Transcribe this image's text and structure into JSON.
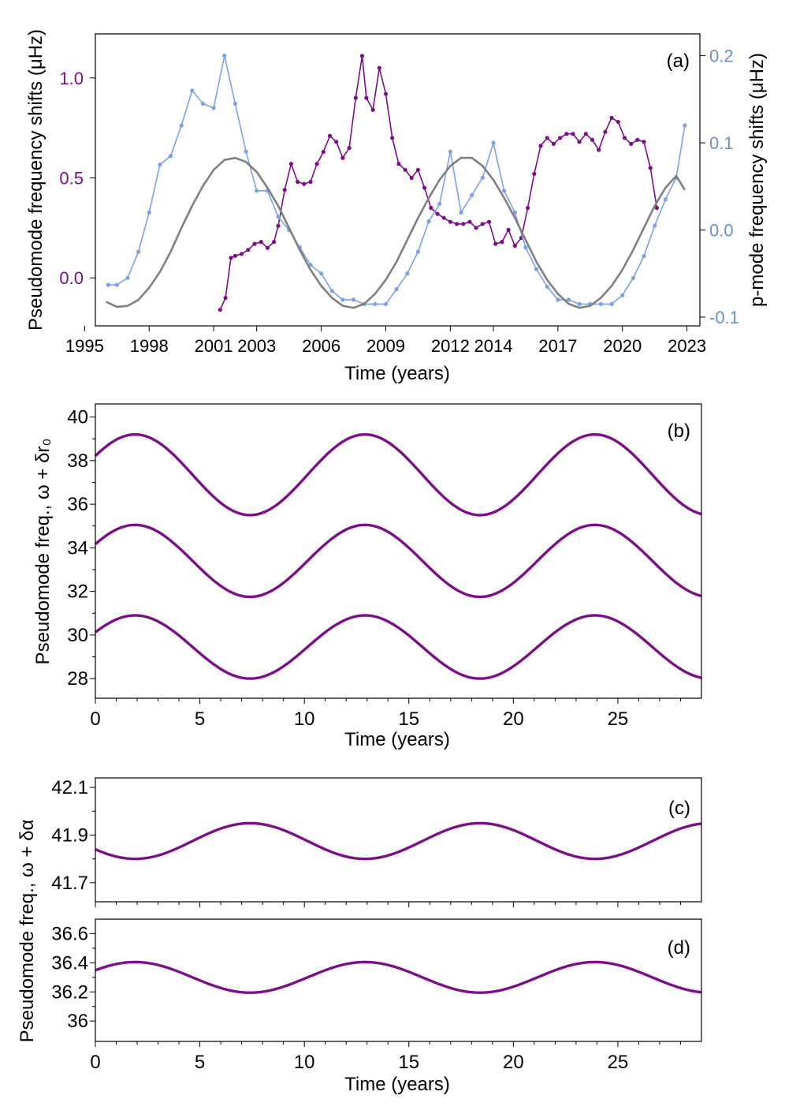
{
  "colors": {
    "pseudomode": "#7b0f87",
    "pmode_line": "#7ea0e6",
    "pmode_axis": "#6f8fc4",
    "sine": "#808080",
    "pseudomode_label": "#7b0f87"
  },
  "chart_data": [
    {
      "id": "a",
      "type": "line",
      "panel_label": "(a)",
      "xlabel": "Time (years)",
      "ylabel_left": "Pseudomode frequency shifts (μHz)",
      "ylabel_right": "p-mode frequency shifts (μHz)",
      "xlim": [
        1995.5,
        2023.6
      ],
      "ylim_left": [
        -0.24,
        1.22
      ],
      "ylim_right": [
        -0.11,
        0.225
      ],
      "xticks": [
        1995,
        1998,
        2001,
        2003,
        2006,
        2009,
        2012,
        2014,
        2017,
        2020,
        2023
      ],
      "xtick_labels": [
        "1995",
        "1998",
        "2001",
        "2003",
        "2006",
        "2009",
        "2012",
        "2014",
        "2017",
        "2020",
        "2023"
      ],
      "yticks_left": [
        0.0,
        0.5,
        1.0
      ],
      "ytick_labels_left": [
        "0.0",
        "0.5",
        "1.0"
      ],
      "yticks_right": [
        -0.1,
        0.0,
        0.1,
        0.2
      ],
      "ytick_labels_right": [
        "-0.1",
        "0.0",
        "0.1",
        "0.2"
      ],
      "series": [
        {
          "name": "pseudomode shifts",
          "axis": "left",
          "markers": true,
          "x": [
            2001.3,
            2001.55,
            2001.8,
            2002.0,
            2002.3,
            2002.6,
            2002.9,
            2003.2,
            2003.5,
            2003.8,
            2004.0,
            2004.3,
            2004.6,
            2004.9,
            2005.2,
            2005.5,
            2005.8,
            2006.1,
            2006.4,
            2006.7,
            2007.0,
            2007.3,
            2007.6,
            2007.9,
            2008.1,
            2008.4,
            2008.7,
            2009.0,
            2009.3,
            2009.6,
            2009.9,
            2010.2,
            2010.5,
            2010.8,
            2011.1,
            2011.4,
            2011.7,
            2012.0,
            2012.3,
            2012.6,
            2012.9,
            2013.2,
            2013.5,
            2013.8,
            2014.1,
            2014.4,
            2014.7,
            2015.0,
            2015.3,
            2015.6,
            2015.9,
            2016.2,
            2016.5,
            2016.8,
            2017.1,
            2017.4,
            2017.7,
            2018.0,
            2018.3,
            2018.6,
            2018.9,
            2019.2,
            2019.5,
            2019.8,
            2020.1,
            2020.4,
            2020.7,
            2021.0,
            2021.3,
            2021.6
          ],
          "y": [
            -0.16,
            -0.1,
            0.1,
            0.11,
            0.12,
            0.14,
            0.17,
            0.18,
            0.15,
            0.18,
            0.26,
            0.44,
            0.57,
            0.48,
            0.47,
            0.48,
            0.57,
            0.63,
            0.71,
            0.68,
            0.6,
            0.65,
            0.9,
            1.11,
            0.9,
            0.84,
            1.05,
            0.92,
            0.7,
            0.57,
            0.54,
            0.5,
            0.54,
            0.45,
            0.35,
            0.32,
            0.3,
            0.28,
            0.27,
            0.27,
            0.28,
            0.25,
            0.27,
            0.28,
            0.17,
            0.18,
            0.24,
            0.16,
            0.2,
            0.35,
            0.52,
            0.66,
            0.7,
            0.67,
            0.7,
            0.72,
            0.72,
            0.68,
            0.72,
            0.69,
            0.64,
            0.73,
            0.8,
            0.78,
            0.7,
            0.67,
            0.69,
            0.68,
            0.55,
            0.35
          ]
        },
        {
          "name": "p-mode shifts",
          "axis": "right",
          "markers": true,
          "x": [
            1996.1,
            1996.5,
            1997.0,
            1997.5,
            1998.0,
            1998.5,
            1999.0,
            1999.5,
            2000.0,
            2000.5,
            2001.0,
            2001.5,
            2002.0,
            2002.5,
            2003.0,
            2003.5,
            2004.0,
            2004.5,
            2005.0,
            2005.5,
            2006.0,
            2006.5,
            2007.0,
            2007.5,
            2008.0,
            2008.5,
            2009.0,
            2009.5,
            2010.0,
            2010.5,
            2011.0,
            2011.5,
            2012.0,
            2012.5,
            2013.0,
            2013.5,
            2014.0,
            2014.5,
            2015.0,
            2015.5,
            2016.0,
            2016.5,
            2017.0,
            2017.5,
            2018.0,
            2018.5,
            2019.0,
            2019.5,
            2020.0,
            2020.5,
            2021.0,
            2021.5,
            2022.0,
            2022.5,
            2022.9
          ],
          "y": [
            -0.063,
            -0.063,
            -0.055,
            -0.025,
            0.02,
            0.075,
            0.085,
            0.12,
            0.16,
            0.145,
            0.14,
            0.2,
            0.145,
            0.09,
            0.045,
            0.045,
            0.015,
            0.0,
            -0.02,
            -0.04,
            -0.05,
            -0.07,
            -0.08,
            -0.08,
            -0.085,
            -0.085,
            -0.085,
            -0.068,
            -0.05,
            -0.025,
            0.01,
            0.03,
            0.09,
            0.02,
            0.04,
            0.06,
            0.1,
            0.045,
            0.02,
            -0.02,
            -0.045,
            -0.065,
            -0.08,
            -0.08,
            -0.085,
            -0.085,
            -0.085,
            -0.085,
            -0.075,
            -0.055,
            -0.03,
            0.005,
            0.035,
            0.06,
            0.12
          ]
        },
        {
          "name": "solar-cycle sinusoid",
          "axis": "left",
          "markers": false,
          "x": [
            1996.0,
            1996.5,
            1997.0,
            1997.5,
            1998.0,
            1998.5,
            1999.0,
            1999.5,
            2000.0,
            2000.5,
            2001.0,
            2001.5,
            2002.0,
            2002.5,
            2003.0,
            2003.5,
            2004.0,
            2004.5,
            2005.0,
            2005.5,
            2006.0,
            2006.5,
            2007.0,
            2007.5,
            2008.0,
            2008.5,
            2009.0,
            2009.5,
            2010.0,
            2010.5,
            2011.0,
            2011.5,
            2012.0,
            2012.5,
            2013.0,
            2013.5,
            2014.0,
            2014.5,
            2015.0,
            2015.5,
            2016.0,
            2016.5,
            2017.0,
            2017.5,
            2018.0,
            2018.5,
            2019.0,
            2019.5,
            2020.0,
            2020.5,
            2021.0,
            2021.5,
            2022.0,
            2022.5,
            2022.9
          ],
          "y": [
            -0.12,
            -0.145,
            -0.14,
            -0.11,
            -0.05,
            0.03,
            0.13,
            0.25,
            0.36,
            0.46,
            0.54,
            0.59,
            0.6,
            0.58,
            0.53,
            0.45,
            0.36,
            0.25,
            0.14,
            0.04,
            -0.04,
            -0.1,
            -0.14,
            -0.15,
            -0.13,
            -0.08,
            -0.01,
            0.08,
            0.19,
            0.3,
            0.4,
            0.49,
            0.56,
            0.6,
            0.6,
            0.56,
            0.49,
            0.4,
            0.3,
            0.19,
            0.08,
            -0.01,
            -0.08,
            -0.13,
            -0.15,
            -0.14,
            -0.1,
            -0.04,
            0.04,
            0.14,
            0.25,
            0.36,
            0.45,
            0.51,
            0.44
          ]
        }
      ]
    },
    {
      "id": "b",
      "type": "line",
      "panel_label": "(b)",
      "xlabel": "Time (years)",
      "ylabel": "Pseudomode freq., ω + δr₀",
      "xlim": [
        0,
        29
      ],
      "ylim": [
        27.1,
        40.6
      ],
      "xticks": [
        0,
        5,
        10,
        15,
        20,
        25
      ],
      "xtick_labels": [
        "0",
        "5",
        "10",
        "15",
        "20",
        "25"
      ],
      "yticks": [
        28,
        30,
        32,
        34,
        36,
        38,
        40
      ],
      "ytick_labels": [
        "28",
        "30",
        "32",
        "34",
        "36",
        "38",
        "40"
      ],
      "series": [
        {
          "name": "upper",
          "center": 37.35,
          "amplitude": 1.85,
          "period": 11,
          "peak_at": 1.9
        },
        {
          "name": "middle",
          "center": 33.4,
          "amplitude": 1.65,
          "period": 11,
          "peak_at": 1.9
        },
        {
          "name": "lower",
          "center": 29.45,
          "amplitude": 1.45,
          "period": 11,
          "peak_at": 1.9
        }
      ]
    },
    {
      "id": "c",
      "type": "line",
      "panel_label": "(c)",
      "xlim": [
        0,
        29
      ],
      "ylim": [
        41.62,
        42.14
      ],
      "xticks": [
        0,
        5,
        10,
        15,
        20,
        25
      ],
      "yticks": [
        41.7,
        41.9,
        42.1
      ],
      "ytick_labels": [
        "41.7",
        "41.9",
        "42.1"
      ],
      "series": [
        {
          "name": "alpha",
          "center": 41.875,
          "amplitude": 0.075,
          "period": 11,
          "peak_at": 7.4
        }
      ]
    },
    {
      "id": "d",
      "type": "line",
      "panel_label": "(d)",
      "xlabel": "Time (years)",
      "xlim": [
        0,
        29
      ],
      "ylim": [
        35.86,
        36.7
      ],
      "xticks": [
        0,
        5,
        10,
        15,
        20,
        25
      ],
      "xtick_labels": [
        "0",
        "5",
        "10",
        "15",
        "20",
        "25"
      ],
      "yticks": [
        36.0,
        36.2,
        36.4,
        36.6
      ],
      "ytick_labels": [
        "36",
        "36.2",
        "36.4",
        "36.6"
      ],
      "series": [
        {
          "name": "alpha",
          "center": 36.3,
          "amplitude": 0.105,
          "period": 11,
          "peak_at": 1.9
        }
      ]
    }
  ],
  "shared_ylabel_cd": "Pseudomode freq., ω + δα"
}
